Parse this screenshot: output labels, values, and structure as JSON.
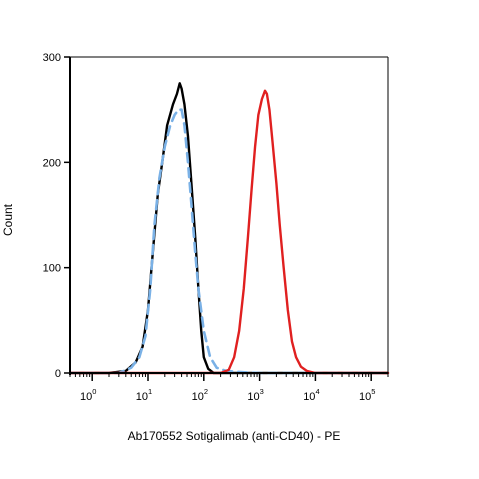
{
  "chart_data": {
    "type": "line",
    "title": "",
    "xlabel": "Ab170552 Sotigalimab (anti-CD40) - PE",
    "ylabel": "Count",
    "x_scale": "log",
    "xlim": [
      0.4,
      200000
    ],
    "ylim": [
      0,
      300
    ],
    "x_ticks": [
      {
        "value": 1,
        "base": "10",
        "exp": "0"
      },
      {
        "value": 10,
        "base": "10",
        "exp": "1"
      },
      {
        "value": 100,
        "base": "10",
        "exp": "2"
      },
      {
        "value": 1000,
        "base": "10",
        "exp": "3"
      },
      {
        "value": 10000,
        "base": "10",
        "exp": "4"
      },
      {
        "value": 100000,
        "base": "10",
        "exp": "5"
      }
    ],
    "y_ticks": [
      {
        "value": 0,
        "label": "0"
      },
      {
        "value": 100,
        "label": "100"
      },
      {
        "value": 200,
        "label": "200"
      },
      {
        "value": 300,
        "label": "300"
      }
    ],
    "grid": false,
    "legend": "none",
    "series": [
      {
        "color": "#000000",
        "style": "solid",
        "points": [
          [
            0.4,
            0
          ],
          [
            2,
            0
          ],
          [
            4,
            2
          ],
          [
            6,
            10
          ],
          [
            8,
            25
          ],
          [
            10,
            60
          ],
          [
            12,
            110
          ],
          [
            15,
            170
          ],
          [
            18,
            200
          ],
          [
            22,
            235
          ],
          [
            28,
            255
          ],
          [
            33,
            265
          ],
          [
            37,
            275
          ],
          [
            40,
            270
          ],
          [
            45,
            255
          ],
          [
            52,
            225
          ],
          [
            60,
            180
          ],
          [
            70,
            130
          ],
          [
            80,
            80
          ],
          [
            90,
            40
          ],
          [
            100,
            15
          ],
          [
            120,
            4
          ],
          [
            150,
            0
          ],
          [
            200000,
            0
          ]
        ]
      },
      {
        "color": "#7ab1e6",
        "style": "dashed",
        "points": [
          [
            0.4,
            0
          ],
          [
            3,
            0
          ],
          [
            5,
            5
          ],
          [
            7,
            15
          ],
          [
            9,
            35
          ],
          [
            11,
            80
          ],
          [
            13,
            140
          ],
          [
            16,
            185
          ],
          [
            20,
            215
          ],
          [
            25,
            235
          ],
          [
            30,
            245
          ],
          [
            35,
            250
          ],
          [
            40,
            250
          ],
          [
            45,
            235
          ],
          [
            52,
            200
          ],
          [
            60,
            160
          ],
          [
            70,
            115
          ],
          [
            80,
            80
          ],
          [
            100,
            40
          ],
          [
            130,
            15
          ],
          [
            170,
            5
          ],
          [
            250,
            2
          ],
          [
            400,
            1
          ],
          [
            1000,
            0
          ],
          [
            200000,
            0
          ]
        ]
      },
      {
        "color": "#e02020",
        "style": "solid",
        "points": [
          [
            0.4,
            0
          ],
          [
            200,
            0
          ],
          [
            280,
            3
          ],
          [
            350,
            15
          ],
          [
            430,
            40
          ],
          [
            520,
            80
          ],
          [
            620,
            130
          ],
          [
            720,
            175
          ],
          [
            830,
            215
          ],
          [
            950,
            245
          ],
          [
            1100,
            260
          ],
          [
            1250,
            268
          ],
          [
            1350,
            265
          ],
          [
            1500,
            250
          ],
          [
            1700,
            220
          ],
          [
            2000,
            180
          ],
          [
            2300,
            140
          ],
          [
            2700,
            100
          ],
          [
            3200,
            60
          ],
          [
            3800,
            30
          ],
          [
            4500,
            15
          ],
          [
            5500,
            6
          ],
          [
            7000,
            2
          ],
          [
            10000,
            0
          ],
          [
            200000,
            0
          ]
        ]
      }
    ]
  }
}
